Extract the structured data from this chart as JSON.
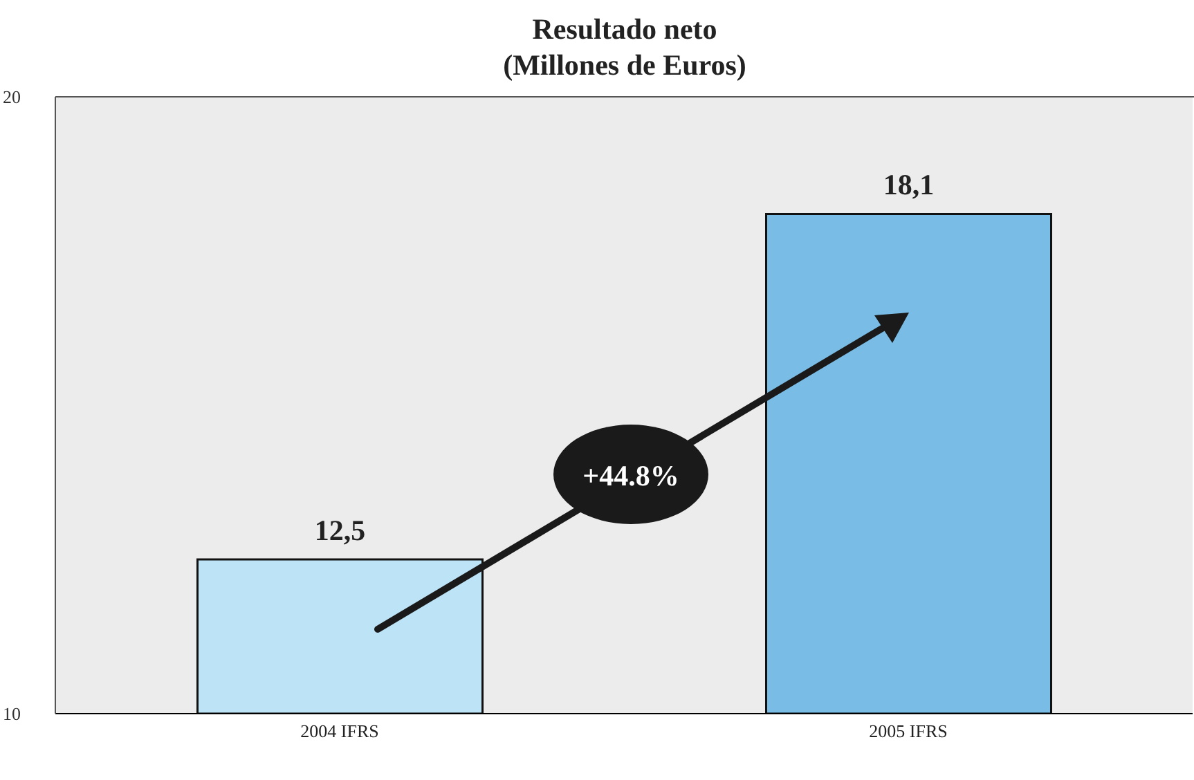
{
  "chart_data": {
    "type": "bar",
    "title": "Resultado neto\n(Millones de Euros)",
    "categories": [
      "2004 IFRS",
      "2005 IFRS"
    ],
    "values": [
      12.5,
      18.1
    ],
    "colors": [
      "#bde3f7",
      "#79bde6"
    ],
    "value_labels": [
      "12,5",
      "18,1"
    ],
    "ylim": [
      10,
      20
    ],
    "yticks": [
      10,
      20
    ],
    "annotations": [
      "+44.8%"
    ]
  }
}
